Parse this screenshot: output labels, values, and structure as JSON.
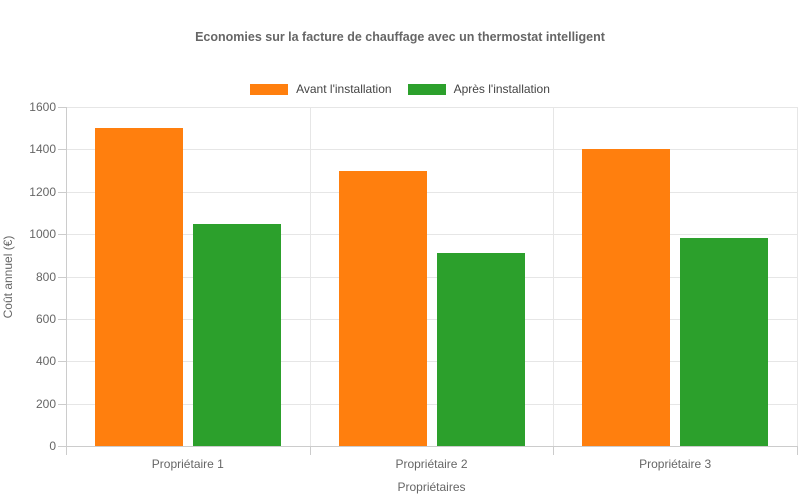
{
  "chart_data": {
    "type": "bar",
    "title": "Economies sur la facture de chauffage avec un thermostat intelligent",
    "categories": [
      "Propriétaire 1",
      "Propriétaire 2",
      "Propriétaire 3"
    ],
    "series": [
      {
        "name": "Avant l'installation",
        "color": "#ff7f0e",
        "values": [
          1500,
          1300,
          1400
        ]
      },
      {
        "name": "Après l'installation",
        "color": "#2ca02c",
        "values": [
          1050,
          910,
          980
        ]
      }
    ],
    "xlabel": "Propriétaires",
    "ylabel": "Coût annuel (€)",
    "ylim": [
      0,
      1600
    ],
    "ytick_step": 200,
    "yticks": [
      0,
      200,
      400,
      600,
      800,
      1000,
      1200,
      1400,
      1600
    ],
    "grid": true,
    "legend_position": "top-center",
    "colors": {
      "gridline": "#e6e6e6",
      "axis_line": "#cccccc",
      "title_text": "#666666",
      "axis_text": "#666666",
      "legend_text": "#444444",
      "background": "#ffffff"
    }
  }
}
